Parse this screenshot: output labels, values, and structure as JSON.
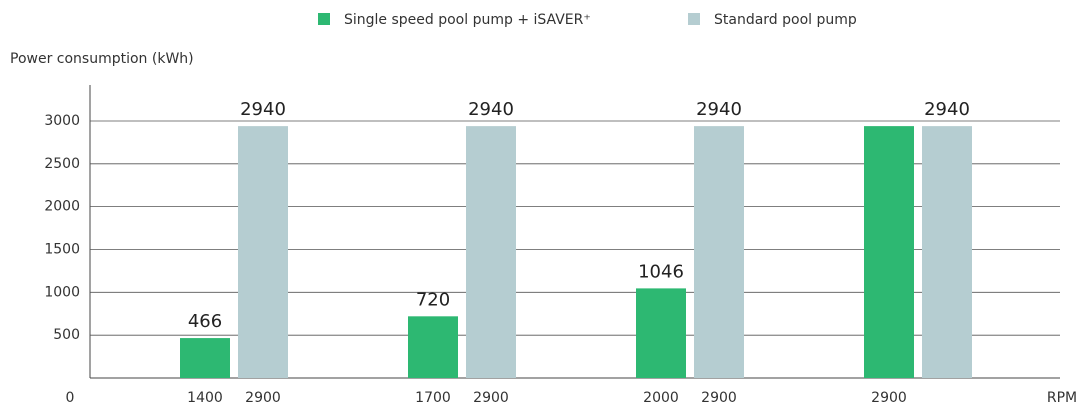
{
  "chart_data": {
    "type": "bar",
    "ylabel": "Power consumption (kWh)",
    "xlabel": "RPM",
    "ylim": [
      0,
      3420
    ],
    "yticks": [
      0,
      500,
      1000,
      1500,
      2000,
      2500,
      3000
    ],
    "grid": true,
    "legend": "top",
    "series": [
      {
        "name": "Single speed pool pump + iSAVER⁺",
        "color": "#2db872",
        "values": [
          466,
          720,
          1046,
          2940
        ],
        "value_labels": [
          "466",
          "720",
          "1046",
          null
        ],
        "x_labels": [
          "1400",
          "1700",
          "2000",
          "2900"
        ]
      },
      {
        "name": "Standard pool pump",
        "color": "#b5cdd1",
        "values": [
          2940,
          2940,
          2940,
          2940
        ],
        "x_labels": [
          "2900",
          "2900",
          "2900",
          null
        ]
      }
    ]
  }
}
